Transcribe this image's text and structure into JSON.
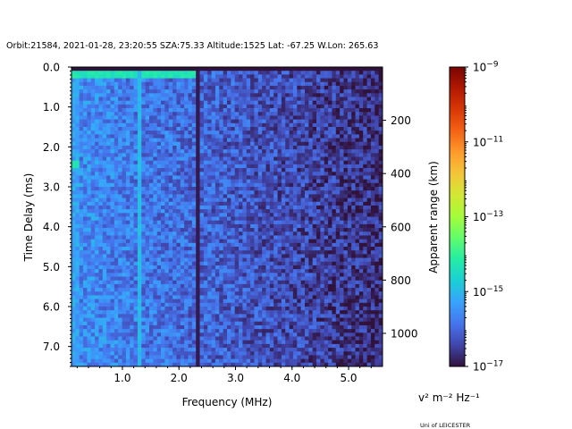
{
  "chart_data": {
    "type": "heatmap",
    "title": "Orbit:21584, 2021-01-28, 23:20:55 SZA:75.33 Altitude:1525 Lat: -67.25 W.Lon: 265.63",
    "xlabel": "Frequency (MHz)",
    "ylabel": "Time Delay (ms)",
    "y2label": "Apparent range (km)",
    "xlim": [
      0.1,
      5.6
    ],
    "ylim": [
      7.5,
      0.0
    ],
    "x_ticks": [
      {
        "value": 1.0,
        "label": "1.0"
      },
      {
        "value": 2.0,
        "label": "2.0"
      },
      {
        "value": 3.0,
        "label": "3.0"
      },
      {
        "value": 4.0,
        "label": "4.0"
      },
      {
        "value": 5.0,
        "label": "5.0"
      }
    ],
    "y_ticks": [
      {
        "value": 0.0,
        "label": "0.0"
      },
      {
        "value": 1.0,
        "label": "1.0"
      },
      {
        "value": 2.0,
        "label": "2.0"
      },
      {
        "value": 3.0,
        "label": "3.0"
      },
      {
        "value": 4.0,
        "label": "4.0"
      },
      {
        "value": 5.0,
        "label": "5.0"
      },
      {
        "value": 6.0,
        "label": "6.0"
      },
      {
        "value": 7.0,
        "label": "7.0"
      }
    ],
    "y2_ticks": [
      {
        "value": 200,
        "label": "200"
      },
      {
        "value": 400,
        "label": "400"
      },
      {
        "value": 600,
        "label": "600"
      },
      {
        "value": 800,
        "label": "800"
      },
      {
        "value": 1000,
        "label": "1000"
      }
    ],
    "y2_range_km_per_ms": 149.9,
    "colorbar": {
      "label": "v² m⁻² Hz⁻¹",
      "scale": "log",
      "vmin_exp": -17,
      "vmax_exp": -9,
      "ticks": [
        {
          "exp": -9,
          "label": "10",
          "sup": "−9"
        },
        {
          "exp": -11,
          "label": "10",
          "sup": "−11"
        },
        {
          "exp": -13,
          "label": "10",
          "sup": "−13"
        },
        {
          "exp": -15,
          "label": "10",
          "sup": "−15"
        },
        {
          "exp": -17,
          "label": "10",
          "sup": "−17"
        }
      ],
      "colormap": "turbo",
      "colormap_stops": [
        "#30123b",
        "#4145ab",
        "#4675ed",
        "#39a2fc",
        "#1bcfd4",
        "#24eca6",
        "#61fc6c",
        "#a4fc3b",
        "#d1e834",
        "#f3c63a",
        "#fe9b2d",
        "#f36315",
        "#d93806",
        "#b11901",
        "#7a0402"
      ]
    },
    "grid": false,
    "n_freq_bins": 80,
    "n_delay_bins": 80,
    "features": [
      {
        "name": "low-frequency cutoff band",
        "freq_range_mhz": [
          0.1,
          0.25
        ],
        "delay_range_ms": [
          0.0,
          7.5
        ],
        "log_intensity": -15.3
      },
      {
        "name": "ionospheric trace near zero delay",
        "freq_range_mhz": [
          0.1,
          2.3
        ],
        "delay_range_ms": [
          0.1,
          0.25
        ],
        "log_intensity": -14.3
      },
      {
        "name": "bright spot",
        "freq_range_mhz": [
          0.1,
          0.25
        ],
        "delay_range_ms": [
          2.3,
          2.5
        ],
        "log_intensity": -14.3
      },
      {
        "name": "vertical interference line",
        "freq_mhz": 1.33,
        "log_intensity": -15.0
      },
      {
        "name": "dark vertical line",
        "freq_mhz": 2.35,
        "log_intensity": -16.9
      },
      {
        "name": "background falloff",
        "freq_range_mhz": [
          0.5,
          5.6
        ],
        "log_intensity_start": -15.6,
        "log_intensity_end": -16.7
      }
    ]
  },
  "footer": {
    "credit": "Uni of LEICESTER"
  }
}
